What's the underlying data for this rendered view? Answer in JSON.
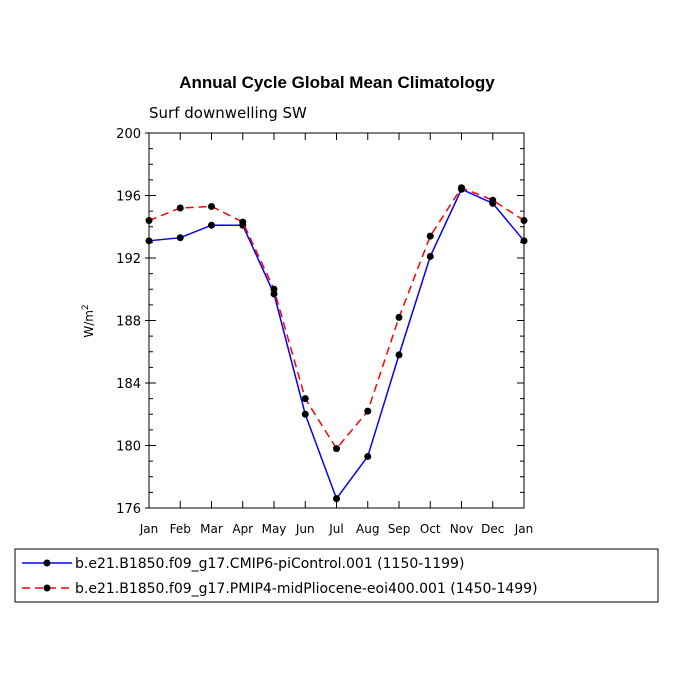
{
  "chart_data": {
    "type": "line",
    "title": "Annual Cycle Global Mean Climatology",
    "subtitle": "Surf downwelling SW",
    "ylabel": "W/m",
    "ylabel_sup": "2",
    "xlabel": "",
    "categories": [
      "Jan",
      "Feb",
      "Mar",
      "Apr",
      "May",
      "Jun",
      "Jul",
      "Aug",
      "Sep",
      "Oct",
      "Nov",
      "Dec",
      "Jan"
    ],
    "ylim": [
      176,
      200
    ],
    "yticks": [
      176,
      180,
      184,
      188,
      192,
      196,
      200
    ],
    "series": [
      {
        "name": "b.e21.B1850.f09_g17.CMIP6-piControl.001 (1150-1199)",
        "color": "#0000ff",
        "dash": "solid",
        "values": [
          193.1,
          193.3,
          194.1,
          194.1,
          189.7,
          182.0,
          176.6,
          179.3,
          185.8,
          192.1,
          196.4,
          195.5,
          193.1
        ]
      },
      {
        "name": "b.e21.B1850.f09_g17.PMIP4-midPliocene-eoi400.001 (1450-1499)",
        "color": "#ff0000",
        "dash": "dashed",
        "values": [
          194.4,
          195.2,
          195.3,
          194.3,
          190.0,
          183.0,
          179.8,
          182.2,
          188.2,
          193.4,
          196.5,
          195.7,
          194.4
        ]
      }
    ],
    "legend_position": "bottom"
  }
}
